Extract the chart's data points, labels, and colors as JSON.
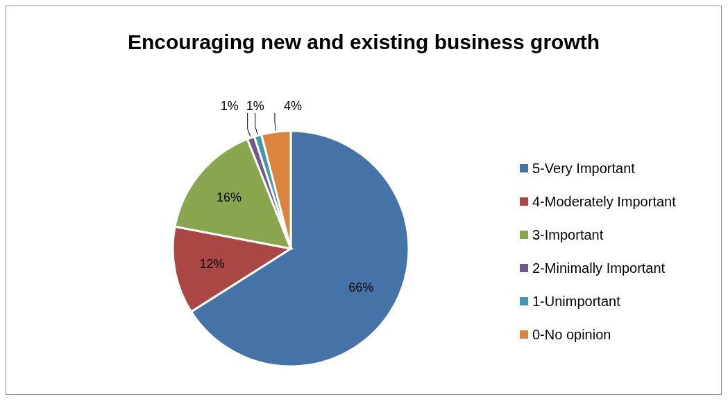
{
  "chart_data": {
    "type": "pie",
    "title": "Encouraging new and existing business growth",
    "categories": [
      "5-Very Important",
      "4-Moderately Important",
      "3-Important",
      "2-Minimally Important",
      "1-Unimportant",
      "0-No opinion"
    ],
    "values": [
      66,
      12,
      16,
      1,
      1,
      4
    ],
    "colors": [
      "#4572a7",
      "#aa4643",
      "#89a54e",
      "#71588f",
      "#4198af",
      "#db843d"
    ],
    "value_labels": [
      "66%",
      "12%",
      "16%",
      "1%",
      "1%",
      "4%"
    ],
    "legend": "right"
  }
}
